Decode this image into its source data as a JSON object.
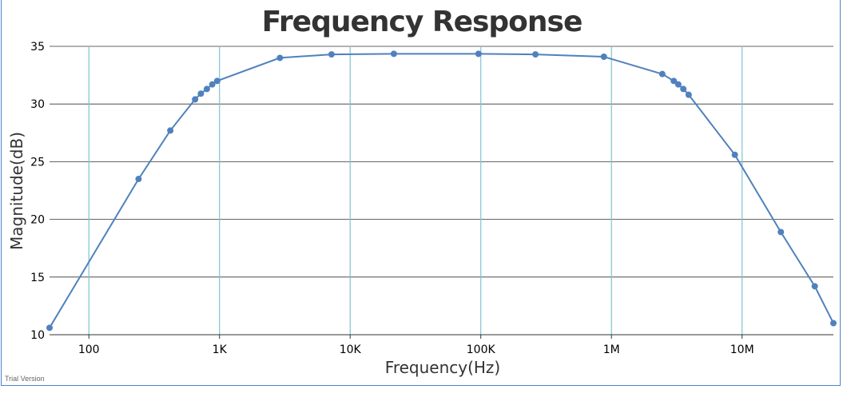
{
  "chart_data": {
    "type": "line",
    "title": "Frequency Response",
    "xlabel": "Frequency(Hz)",
    "ylabel": "Magnitude(dB)",
    "x_scale": "log",
    "xlim": [
      50,
      50000000
    ],
    "ylim": [
      10,
      35
    ],
    "x_ticks": [
      {
        "value": 100,
        "label": "100"
      },
      {
        "value": 1000,
        "label": "1K"
      },
      {
        "value": 10000,
        "label": "10K"
      },
      {
        "value": 100000,
        "label": "100K"
      },
      {
        "value": 1000000,
        "label": "1M"
      },
      {
        "value": 10000000,
        "label": "10M"
      }
    ],
    "y_ticks": [
      10,
      15,
      20,
      25,
      30,
      35
    ],
    "grid": true,
    "line_color": "#4f81bd",
    "x_grid_color": "#7fc4d0",
    "y_grid_color": "#333333",
    "series": [
      {
        "x": [
          50,
          240,
          420,
          650,
          720,
          800,
          880,
          960,
          2900,
          7200,
          21600,
          96000,
          262000,
          875000,
          2450000,
          3000000,
          3250000,
          3550000,
          3900000,
          8800000,
          19800000,
          36000000,
          50000000
        ],
        "y": [
          10.6,
          23.5,
          27.7,
          30.4,
          30.9,
          31.3,
          31.7,
          32.0,
          34.0,
          34.3,
          34.35,
          34.35,
          34.3,
          34.1,
          32.6,
          32.0,
          31.7,
          31.3,
          30.8,
          25.6,
          18.9,
          14.2,
          11.0
        ]
      }
    ]
  },
  "watermark": "Trial Version"
}
